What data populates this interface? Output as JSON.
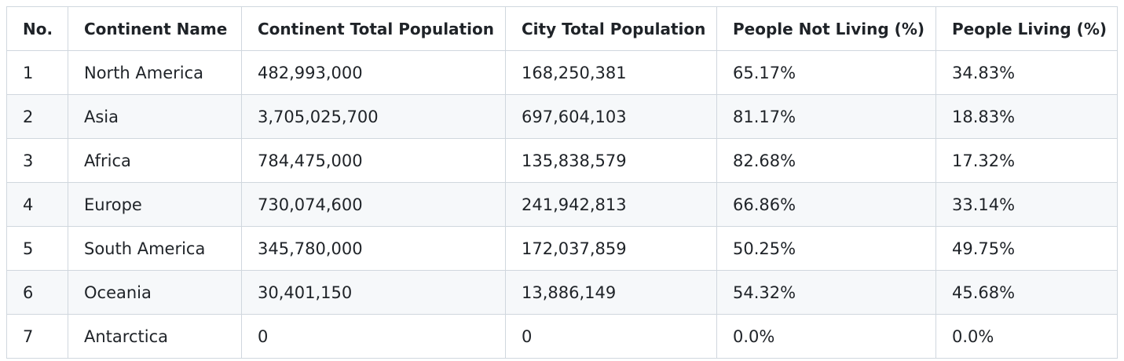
{
  "table": {
    "headers": [
      "No.",
      "Continent Name",
      "Continent Total Population",
      "City Total Population",
      "People Not Living (%)",
      "People Living (%)"
    ],
    "rows": [
      [
        "1",
        "North America",
        "482,993,000",
        "168,250,381",
        "65.17%",
        "34.83%"
      ],
      [
        "2",
        "Asia",
        "3,705,025,700",
        "697,604,103",
        "81.17%",
        "18.83%"
      ],
      [
        "3",
        "Africa",
        "784,475,000",
        "135,838,579",
        "82.68%",
        "17.32%"
      ],
      [
        "4",
        "Europe",
        "730,074,600",
        "241,942,813",
        "66.86%",
        "33.14%"
      ],
      [
        "5",
        "South America",
        "345,780,000",
        "172,037,859",
        "50.25%",
        "49.75%"
      ],
      [
        "6",
        "Oceania",
        "30,401,150",
        "13,886,149",
        "54.32%",
        "45.68%"
      ],
      [
        "7",
        "Antarctica",
        "0",
        "0",
        "0.0%",
        "0.0%"
      ]
    ]
  }
}
